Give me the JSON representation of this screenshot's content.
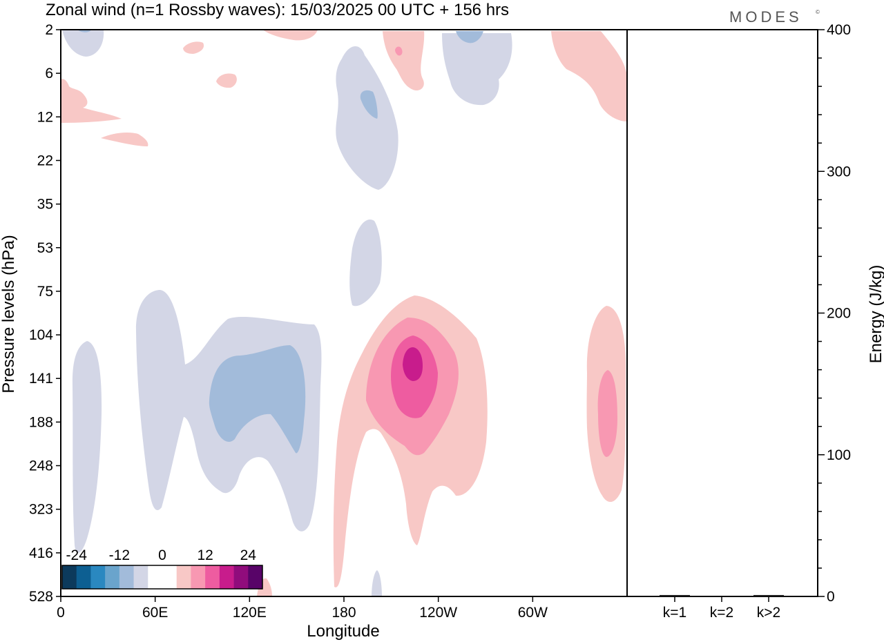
{
  "title": "Zonal wind (n=1 Rossby waves):  15/03/2025  00 UTC  + 156 hrs",
  "logo_text": "MODES",
  "logo_mark": "©",
  "chart_data": [
    {
      "type": "heatmap",
      "title": "Zonal wind (n=1 Rossby waves):  15/03/2025  00 UTC  + 156 hrs",
      "xlabel": "Longitude",
      "ylabel": "Pressure levels (hPa)",
      "x_ticks": [
        "0",
        "60E",
        "120E",
        "180",
        "120W",
        "60W"
      ],
      "x_tick_degrees": [
        0,
        60,
        120,
        180,
        240,
        300
      ],
      "x_range_degrees": [
        0,
        360
      ],
      "y_ticks": [
        "2",
        "6",
        "12",
        "22",
        "35",
        "53",
        "75",
        "104",
        "141",
        "188",
        "248",
        "323",
        "416",
        "528"
      ],
      "y_scale": "ordinal pressure levels, top to bottom",
      "colorbar": {
        "tick_labels": [
          "-24",
          "-12",
          "0",
          "12",
          "24"
        ],
        "tick_values": [
          -24,
          -12,
          0,
          12,
          24
        ],
        "colors": [
          "#0c3a5c",
          "#0d5f92",
          "#2a88c0",
          "#6aa4cc",
          "#a2bbda",
          "#d3d6e6",
          "#ffffff",
          "#ffffff",
          "#f8c8c6",
          "#f898b2",
          "#ee5ca0",
          "#c81c8c",
          "#900c7c",
          "#580468"
        ]
      },
      "features": [
        {
          "sign": "positive",
          "peak_value": 18,
          "center_longitude": 223,
          "center_level": "141",
          "level_range": [
            "75",
            "416"
          ]
        },
        {
          "sign": "positive",
          "peak_value": 10,
          "center_longitude": 347,
          "center_level": "188",
          "level_range": [
            "104",
            "323"
          ]
        },
        {
          "sign": "negative",
          "peak_value": -9,
          "center_longitude": 110,
          "center_level": "141",
          "level_range": [
            "75",
            "323"
          ]
        },
        {
          "sign": "negative",
          "peak_value": -6,
          "center_longitude": 14,
          "center_level": "188",
          "level_range": [
            "104",
            "416"
          ]
        },
        {
          "sign": "negative",
          "peak_value": -8,
          "center_longitude": 196,
          "center_level": "12",
          "level_range": [
            "2",
            "22"
          ]
        },
        {
          "sign": "negative",
          "peak_value": -7,
          "center_longitude": 260,
          "center_level": "2",
          "level_range": [
            "2",
            "12"
          ]
        },
        {
          "sign": "negative",
          "peak_value": -4,
          "center_longitude": 197,
          "center_level": "53",
          "level_range": [
            "35",
            "75"
          ]
        },
        {
          "sign": "positive",
          "peak_value": 5,
          "center_longitude": 221,
          "center_level": "2",
          "level_range": [
            "2",
            "12"
          ]
        },
        {
          "sign": "positive",
          "peak_value": 4,
          "center_longitude": 345,
          "center_level": "6",
          "level_range": [
            "2",
            "12"
          ]
        },
        {
          "sign": "positive",
          "peak_value": 3,
          "center_longitude": 12,
          "center_level": "12",
          "level_range": [
            "6",
            "22"
          ]
        }
      ]
    },
    {
      "type": "bar",
      "ylabel": "Energy (J/kg)",
      "categories": [
        "k=1",
        "k=2",
        "k>2"
      ],
      "values": [
        1,
        0,
        1
      ],
      "ylim": [
        0,
        400
      ],
      "y_ticks": [
        "0",
        "100",
        "200",
        "300",
        "400"
      ],
      "y_tick_values": [
        0,
        100,
        200,
        300,
        400
      ],
      "bar_color": "#1a1a1a"
    }
  ]
}
